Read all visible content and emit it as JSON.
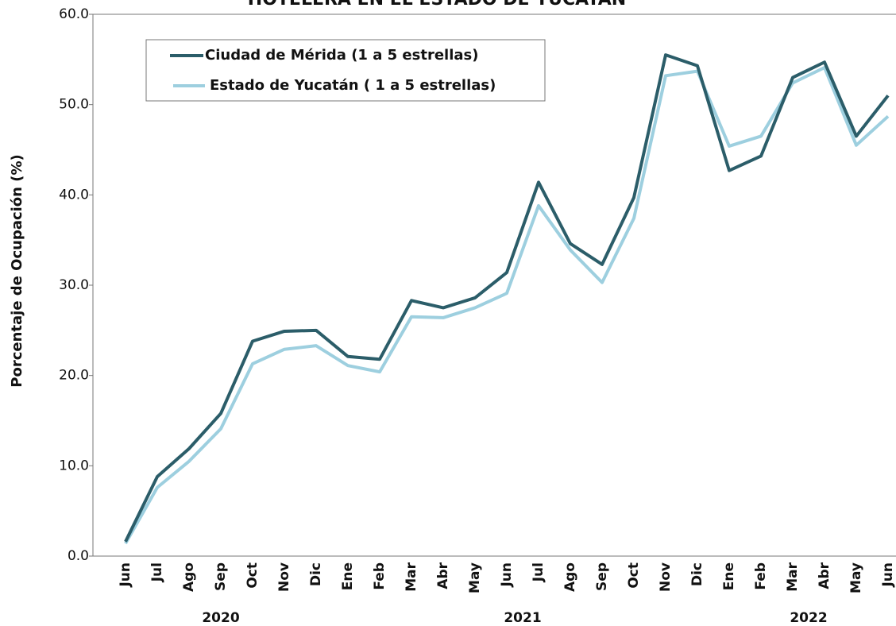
{
  "chart_data": {
    "type": "line",
    "title": "HOTELERA EN EL ESTADO DE YUCATÁN",
    "y_label": "Porcentaje de Ocupación (%)",
    "categories": [
      "Jun",
      "Jul",
      "Ago",
      "Sep",
      "Oct",
      "Nov",
      "Dic",
      "Ene",
      "Feb",
      "Mar",
      "Abr",
      "May",
      "Jun",
      "Jul",
      "Ago",
      "Sep",
      "Oct",
      "Nov",
      "Dic",
      "Ene",
      "Feb",
      "Mar",
      "Abr",
      "May",
      "Jun"
    ],
    "year_labels": [
      "2020",
      "2021",
      "2022"
    ],
    "series": [
      {
        "name": "Ciudad de Mérida (1 a 5 estrellas)",
        "color": "#2b5d69",
        "values": [
          1.6,
          8.8,
          11.9,
          15.8,
          23.8,
          24.9,
          25.0,
          22.1,
          21.8,
          28.3,
          27.5,
          28.6,
          31.4,
          41.4,
          34.6,
          32.3,
          39.7,
          55.5,
          54.3,
          42.7,
          44.3,
          53.0,
          54.7,
          46.5,
          51.0
        ]
      },
      {
        "name": "Estado de Yucatán ( 1 a 5 estrellas)",
        "color": "#9dcfdf",
        "values": [
          1.4,
          7.6,
          10.5,
          14.1,
          21.3,
          22.9,
          23.3,
          21.1,
          20.4,
          26.5,
          26.4,
          27.5,
          29.1,
          38.8,
          33.9,
          30.3,
          37.4,
          53.2,
          53.7,
          45.4,
          46.5,
          52.4,
          54.1,
          45.5,
          48.7
        ]
      }
    ],
    "ylim": [
      0,
      60
    ],
    "yticks": [
      {
        "value": 0,
        "label": "0.0"
      },
      {
        "value": 10,
        "label": "10.0"
      },
      {
        "value": 20,
        "label": "20.0"
      },
      {
        "value": 30,
        "label": "30.0"
      },
      {
        "value": 40,
        "label": "40.0"
      },
      {
        "value": 50,
        "label": "50.0"
      },
      {
        "value": 60,
        "label": "60.0"
      }
    ],
    "legend": "upper left"
  }
}
